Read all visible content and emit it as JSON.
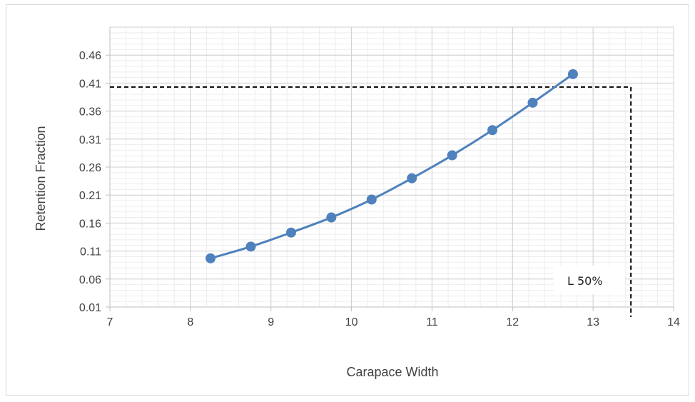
{
  "chart_data": {
    "type": "line",
    "title": "",
    "xlabel": "Carapace Width",
    "ylabel": "Retention Fraction",
    "xlim": [
      7,
      14
    ],
    "ylim": [
      0.01,
      0.51
    ],
    "x_ticks": [
      7,
      8,
      9,
      10,
      11,
      12,
      13,
      14
    ],
    "y_ticks": [
      0.01,
      0.06,
      0.11,
      0.16,
      0.21,
      0.26,
      0.31,
      0.36,
      0.41,
      0.46
    ],
    "y_tick_labels": [
      "0.01",
      "0.06",
      "0.11",
      "0.16",
      "0.21",
      "0.26",
      "0.31",
      "0.36",
      "0.41",
      "0.46"
    ],
    "grid": true,
    "series": [
      {
        "color": "#4f81bd",
        "x": [
          8.25,
          8.75,
          9.25,
          9.75,
          10.25,
          10.75,
          11.25,
          11.75,
          12.25,
          12.75
        ],
        "y": [
          0.097,
          0.118,
          0.143,
          0.17,
          0.202,
          0.24,
          0.281,
          0.326,
          0.375,
          0.426
        ]
      }
    ],
    "reference_lines": {
      "y_value": 0.403,
      "x_value": 13.47,
      "style": "dashed",
      "color": "#000000"
    },
    "annotation": {
      "text": "L 50%"
    }
  }
}
